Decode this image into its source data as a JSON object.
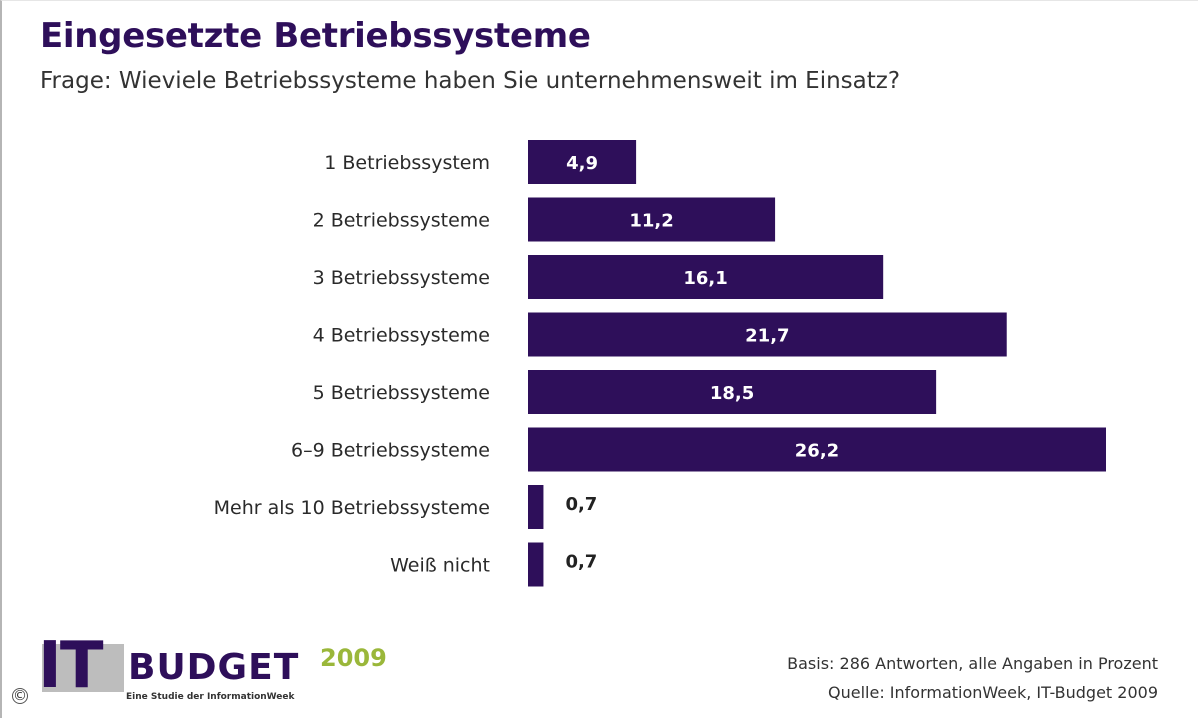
{
  "chart_data": {
    "type": "bar",
    "orientation": "horizontal",
    "title": "Eingesetzte Betriebssysteme",
    "subtitle": "Frage: Wieviele Betriebssysteme haben Sie unternehmensweit im Einsatz?",
    "categories": [
      "1 Betriebssystem",
      "2 Betriebssysteme",
      "3 Betriebssysteme",
      "4 Betriebssysteme",
      "5 Betriebssysteme",
      "6–9 Betriebssysteme",
      "Mehr als 10 Betriebssysteme",
      "Weiß nicht"
    ],
    "values": [
      4.9,
      11.2,
      16.1,
      21.7,
      18.5,
      26.2,
      0.7,
      0.7
    ],
    "value_labels": [
      "4,9",
      "11,2",
      "16,1",
      "21,7",
      "18,5",
      "26,2",
      "0,7",
      "0,7"
    ],
    "xlim": [
      0,
      26.2
    ],
    "grid": false,
    "bar_color": "#2e0f5a"
  },
  "footer": {
    "basis": "Basis: 286 Antworten, alle Angaben in Prozent",
    "quelle": "Quelle: InformationWeek, IT-Budget 2009"
  },
  "logo": {
    "it": "IT",
    "budget": "BUDGET",
    "year": "2009",
    "tagline": "Eine Studie der InformationWeek"
  },
  "copyright_symbol": "©",
  "colors": {
    "title": "#2e0f5a",
    "bar": "#2e0f5a",
    "logo_year": "#9ab73a"
  }
}
